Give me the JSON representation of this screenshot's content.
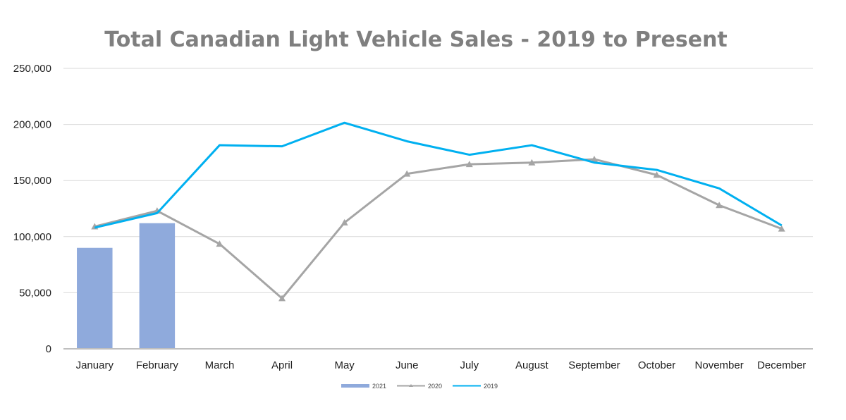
{
  "chart_data": {
    "type": "bar+line",
    "title": "Total Canadian Light Vehicle Sales - 2019 to Present",
    "categories": [
      "January",
      "February",
      "March",
      "April",
      "May",
      "June",
      "July",
      "August",
      "September",
      "October",
      "November",
      "December"
    ],
    "ylim": [
      0,
      250000
    ],
    "yticks": [
      "0",
      "50,000",
      "100,000",
      "150,000",
      "200,000",
      "250,000"
    ],
    "ytick_values": [
      0,
      50000,
      100000,
      150000,
      200000,
      250000
    ],
    "grid": true,
    "legend_position": "bottom",
    "series": [
      {
        "name": "2021",
        "type": "bar",
        "color": "#8faadc",
        "values": [
          90000,
          112000,
          null,
          null,
          null,
          null,
          null,
          null,
          null,
          null,
          null,
          null
        ]
      },
      {
        "name": "2020",
        "type": "line",
        "marker": "triangle",
        "color": "#a5a5a5",
        "values": [
          109000,
          123000,
          93500,
          45000,
          112500,
          156000,
          164500,
          166000,
          169000,
          155000,
          128000,
          107000
        ]
      },
      {
        "name": "2019",
        "type": "line",
        "color": "#00b0f0",
        "values": [
          108000,
          121000,
          181500,
          180500,
          201500,
          185000,
          173000,
          181500,
          166000,
          159500,
          143000,
          110000
        ]
      }
    ]
  }
}
